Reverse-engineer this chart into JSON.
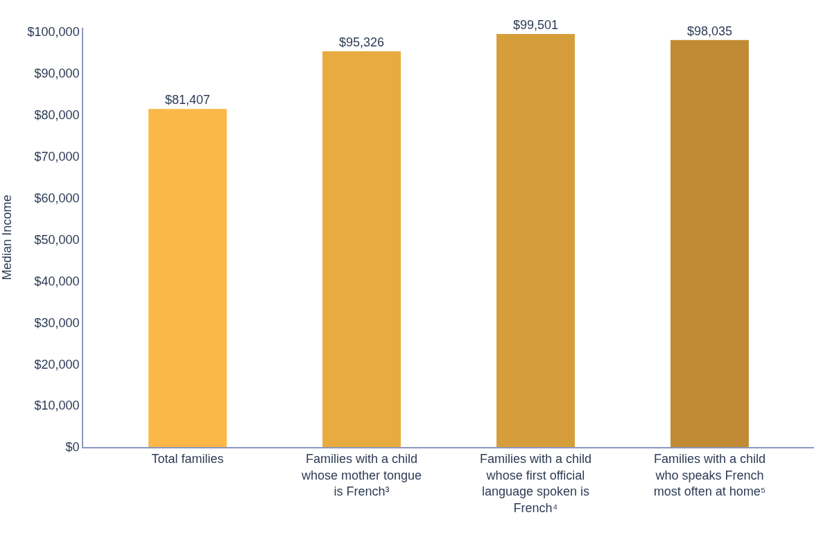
{
  "chart_data": {
    "type": "bar",
    "ylabel": "Median Income",
    "categories": [
      "Total families",
      "Families with a child whose mother tongue is French³",
      "Families with a child whose first official language spoken is French⁴",
      "Families with a child who speaks French most often at home⁵"
    ],
    "values": [
      81407,
      95326,
      99501,
      98035
    ],
    "colors": [
      "#fbb848",
      "#e8ab40",
      "#d69e3a",
      "#c08b34"
    ],
    "value_labels": [
      "$81,407",
      "$95,326",
      "$99,501",
      "$98,035"
    ],
    "ylim": [
      0,
      101000
    ],
    "yticks": [
      {
        "value": 0,
        "label": "$0"
      },
      {
        "value": 10000,
        "label": "$10,000"
      },
      {
        "value": 20000,
        "label": "$20,000"
      },
      {
        "value": 30000,
        "label": "$30,000"
      },
      {
        "value": 40000,
        "label": "$40,000"
      },
      {
        "value": 50000,
        "label": "$50,000"
      },
      {
        "value": 60000,
        "label": "$60,000"
      },
      {
        "value": 70000,
        "label": "$70,000"
      },
      {
        "value": 80000,
        "label": "$80,000"
      },
      {
        "value": 90000,
        "label": "$90,000"
      },
      {
        "value": 100000,
        "label": "$100,000"
      }
    ],
    "orientation": "vertical"
  }
}
